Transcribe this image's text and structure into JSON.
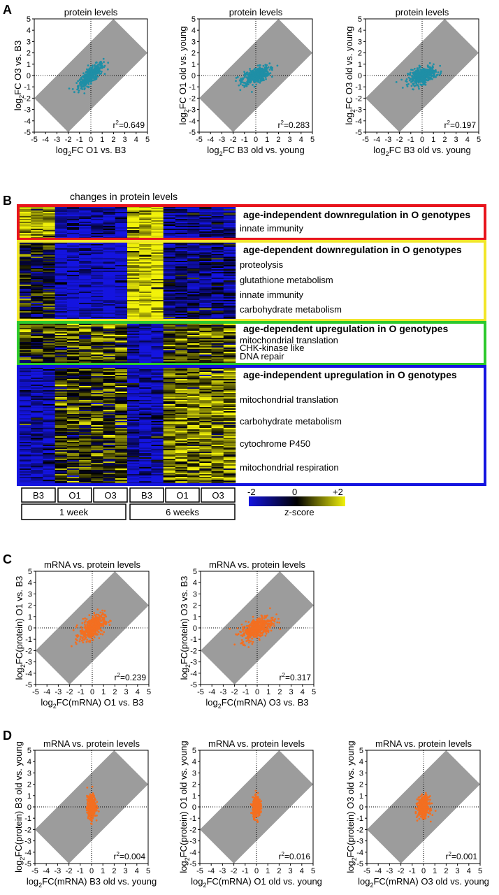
{
  "panels": {
    "A": {
      "letter": "A",
      "plots": [
        {
          "title": "protein levels",
          "xlabel_sub": "2",
          "xlabel_pre": "log",
          "xlabel_post": "FC O1 vs. B3",
          "ylabel_pre": "log",
          "ylabel_sub": "2",
          "ylabel_post": "FC O3 vs. B3",
          "r2_value": "=0.649",
          "color": "#1f8fa6",
          "chart_type": "scatter",
          "spread": [
            1.0,
            1.0
          ],
          "corr": 0.8
        },
        {
          "title": "protein levels",
          "xlabel_sub": "2",
          "xlabel_pre": "log",
          "xlabel_post": "FC B3 old vs. young",
          "ylabel_pre": "log",
          "ylabel_sub": "2",
          "ylabel_post": "FC O1 old vs. young",
          "r2_value": "=0.283",
          "color": "#1f8fa6",
          "chart_type": "scatter",
          "spread": [
            1.1,
            0.7
          ],
          "corr": 0.5
        },
        {
          "title": "protein levels",
          "xlabel_sub": "2",
          "xlabel_pre": "log",
          "xlabel_post": "FC B3 old vs. young",
          "ylabel_pre": "log",
          "ylabel_sub": "2",
          "ylabel_post": "FC O3 old vs. young",
          "r2_value": "=0.197",
          "color": "#1f8fa6",
          "chart_type": "scatter",
          "spread": [
            1.1,
            0.7
          ],
          "corr": 0.44
        }
      ]
    },
    "B": {
      "letter": "B",
      "title": "changes in protein levels",
      "clusters": [
        {
          "border": "#e8141c",
          "heading": "age-independent downregulation in O genotypes",
          "terms": [
            "innate immunity"
          ]
        },
        {
          "border": "#f2e62a",
          "heading": "age-dependent downregulation in O genotypes",
          "terms": [
            "proteolysis",
            "glutathione metabolism",
            "innate immunity",
            "carbohydrate metabolism"
          ]
        },
        {
          "border": "#2dc92d",
          "heading": "age-dependent upregulation in O genotypes",
          "terms": [
            "mitochondrial translation",
            "CHK-kinase like",
            "DNA repair"
          ]
        },
        {
          "border": "#1414e0",
          "heading": "age-independent upregulation in O genotypes",
          "terms": [
            "mitochondrial translation",
            "carbohydrate metabolism",
            "cytochrome P450",
            "mitochondrial respiration"
          ]
        }
      ],
      "genotypes": [
        "B3",
        "O1",
        "O3",
        "B3",
        "O1",
        "O3"
      ],
      "timepoints": [
        "1 week",
        "6 weeks"
      ],
      "colorbar": {
        "min_label": "-2",
        "mid_label": "0",
        "max_label": "+2",
        "label": "z-score",
        "colors": [
          "#1414e0",
          "#000000",
          "#f2f20a"
        ]
      }
    },
    "C": {
      "letter": "C",
      "plots": [
        {
          "title": "mRNA vs. protein levels",
          "xlabel_pre": "log",
          "xlabel_sub": "2",
          "xlabel_post": "FC(mRNA) O1 vs. B3",
          "ylabel_pre": "log",
          "ylabel_sub": "2",
          "ylabel_post": "FC(protein) O1 vs. B3",
          "r2_value": "=0.239",
          "color": "#f36f21",
          "chart_type": "scatter",
          "spread": [
            1.0,
            1.0
          ],
          "corr": 0.49
        },
        {
          "title": "mRNA vs. protein levels",
          "xlabel_pre": "log",
          "xlabel_sub": "2",
          "xlabel_post": "FC(mRNA) O3 vs. B3",
          "ylabel_pre": "log",
          "ylabel_sub": "2",
          "ylabel_post": "FC(protein) O3 vs. B3",
          "r2_value": "=0.317",
          "color": "#f36f21",
          "chart_type": "scatter",
          "spread": [
            1.3,
            1.0
          ],
          "corr": 0.56
        }
      ]
    },
    "D": {
      "letter": "D",
      "plots": [
        {
          "title": "mRNA vs. protein levels",
          "xlabel_pre": "log",
          "xlabel_sub": "2",
          "xlabel_post": "FC(mRNA) B3 old vs. young",
          "ylabel_pre": "log",
          "ylabel_sub": "2",
          "ylabel_post": "FC(protein) B3 old vs. young",
          "r2_value": "=0.004",
          "color": "#f36f21",
          "chart_type": "scatter",
          "spread": [
            0.35,
            0.9
          ],
          "corr": 0.06
        },
        {
          "title": "mRNA vs. protein levels",
          "xlabel_pre": "log",
          "xlabel_sub": "2",
          "xlabel_post": "FC(mRNA) O1 old vs. young",
          "ylabel_pre": "log",
          "ylabel_sub": "2",
          "ylabel_post": "FC(protein) O1 old vs. young",
          "r2_value": "=0.016",
          "color": "#f36f21",
          "chart_type": "scatter",
          "spread": [
            0.3,
            0.8
          ],
          "corr": 0.12
        },
        {
          "title": "mRNA vs. protein levels",
          "xlabel_pre": "log",
          "xlabel_sub": "2",
          "xlabel_post": "FC(mRNA) O3 old vs. young",
          "ylabel_pre": "log",
          "ylabel_sub": "2",
          "ylabel_post": "FC(protein) O3 old vs. young",
          "r2_value": "=0.001",
          "color": "#f36f21",
          "chart_type": "scatter",
          "spread": [
            0.45,
            0.8
          ],
          "corr": 0.03
        }
      ]
    }
  },
  "chart_data": [
    {
      "type": "scatter",
      "title": "protein levels",
      "xlabel": "log2FC O1 vs. B3",
      "ylabel": "log2FC O3 vs. B3",
      "xlim": [
        -5,
        5
      ],
      "ylim": [
        -5,
        5
      ],
      "annotation": "r2=0.649",
      "band_halfwidth": 3,
      "reference_lines": [
        0
      ]
    },
    {
      "type": "scatter",
      "title": "protein levels",
      "xlabel": "log2FC B3 old vs. young",
      "ylabel": "log2FC O1 old vs. young",
      "xlim": [
        -5,
        5
      ],
      "ylim": [
        -5,
        5
      ],
      "annotation": "r2=0.283",
      "band_halfwidth": 3
    },
    {
      "type": "scatter",
      "title": "protein levels",
      "xlabel": "log2FC B3 old vs. young",
      "ylabel": "log2FC O3 old vs. young",
      "xlim": [
        -5,
        5
      ],
      "ylim": [
        -5,
        5
      ],
      "annotation": "r2=0.197",
      "band_halfwidth": 3
    },
    {
      "type": "heatmap",
      "title": "changes in protein levels",
      "columns": [
        "B3 1 week",
        "O1 1 week",
        "O3 1 week",
        "B3 6 weeks",
        "O1 6 weeks",
        "O3 6 weeks"
      ],
      "value_range": [
        -2,
        2
      ],
      "colorbar_label": "z-score"
    },
    {
      "type": "scatter",
      "title": "mRNA vs. protein levels",
      "xlabel": "log2FC(mRNA) O1 vs. B3",
      "ylabel": "log2FC(protein) O1 vs. B3",
      "xlim": [
        -5,
        5
      ],
      "ylim": [
        -5,
        5
      ],
      "annotation": "r2=0.239"
    },
    {
      "type": "scatter",
      "title": "mRNA vs. protein levels",
      "xlabel": "log2FC(mRNA) O3 vs. B3",
      "ylabel": "log2FC(protein) O3 vs. B3",
      "xlim": [
        -5,
        5
      ],
      "ylim": [
        -5,
        5
      ],
      "annotation": "r2=0.317"
    },
    {
      "type": "scatter",
      "title": "mRNA vs. protein levels",
      "xlabel": "log2FC(mRNA) B3 old vs. young",
      "ylabel": "log2FC(protein) B3 old vs. young",
      "xlim": [
        -5,
        5
      ],
      "ylim": [
        -5,
        5
      ],
      "annotation": "r2=0.004"
    },
    {
      "type": "scatter",
      "title": "mRNA vs. protein levels",
      "xlabel": "log2FC(mRNA) O1 old vs. young",
      "ylabel": "log2FC(protein) O1 old vs. young",
      "xlim": [
        -5,
        5
      ],
      "ylim": [
        -5,
        5
      ],
      "annotation": "r2=0.016"
    },
    {
      "type": "scatter",
      "title": "mRNA vs. protein levels",
      "xlabel": "log2FC(mRNA) O3 old vs. young",
      "ylabel": "log2FC(protein) O3 old vs. young",
      "xlim": [
        -5,
        5
      ],
      "ylim": [
        -5,
        5
      ],
      "annotation": "r2=0.001"
    }
  ],
  "axis_ticks": [
    "-5",
    "-4",
    "-3",
    "-2",
    "-1",
    "0",
    "1",
    "2",
    "3",
    "4",
    "5"
  ]
}
